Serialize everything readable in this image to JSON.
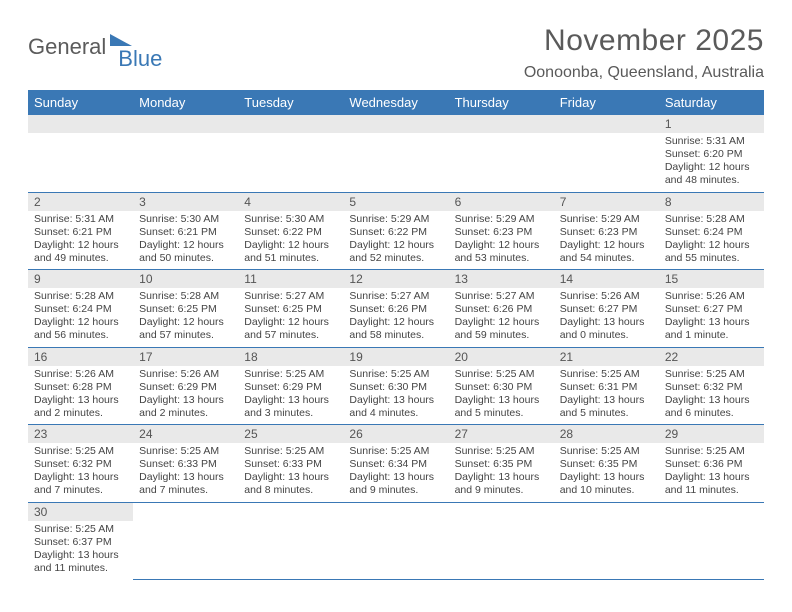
{
  "brand": {
    "part1": "General",
    "part2": "Blue"
  },
  "title": "November 2025",
  "location": "Oonoonba, Queensland, Australia",
  "colors": {
    "header_bg": "#3a78b5",
    "header_text": "#ffffff",
    "daynum_bg": "#e9e9e9",
    "rule": "#3a78b5",
    "text": "#444444",
    "title_text": "#5a5a5a"
  },
  "weekdays": [
    "Sunday",
    "Monday",
    "Tuesday",
    "Wednesday",
    "Thursday",
    "Friday",
    "Saturday"
  ],
  "layout": {
    "cols": 7,
    "rows": 6,
    "cell_font_size_pt": 10.5,
    "header_font_size_pt": 13
  },
  "days": [
    {
      "n": 1,
      "sunrise": "5:31 AM",
      "sunset": "6:20 PM",
      "daylight": "12 hours and 48 minutes."
    },
    {
      "n": 2,
      "sunrise": "5:31 AM",
      "sunset": "6:21 PM",
      "daylight": "12 hours and 49 minutes."
    },
    {
      "n": 3,
      "sunrise": "5:30 AM",
      "sunset": "6:21 PM",
      "daylight": "12 hours and 50 minutes."
    },
    {
      "n": 4,
      "sunrise": "5:30 AM",
      "sunset": "6:22 PM",
      "daylight": "12 hours and 51 minutes."
    },
    {
      "n": 5,
      "sunrise": "5:29 AM",
      "sunset": "6:22 PM",
      "daylight": "12 hours and 52 minutes."
    },
    {
      "n": 6,
      "sunrise": "5:29 AM",
      "sunset": "6:23 PM",
      "daylight": "12 hours and 53 minutes."
    },
    {
      "n": 7,
      "sunrise": "5:29 AM",
      "sunset": "6:23 PM",
      "daylight": "12 hours and 54 minutes."
    },
    {
      "n": 8,
      "sunrise": "5:28 AM",
      "sunset": "6:24 PM",
      "daylight": "12 hours and 55 minutes."
    },
    {
      "n": 9,
      "sunrise": "5:28 AM",
      "sunset": "6:24 PM",
      "daylight": "12 hours and 56 minutes."
    },
    {
      "n": 10,
      "sunrise": "5:28 AM",
      "sunset": "6:25 PM",
      "daylight": "12 hours and 57 minutes."
    },
    {
      "n": 11,
      "sunrise": "5:27 AM",
      "sunset": "6:25 PM",
      "daylight": "12 hours and 57 minutes."
    },
    {
      "n": 12,
      "sunrise": "5:27 AM",
      "sunset": "6:26 PM",
      "daylight": "12 hours and 58 minutes."
    },
    {
      "n": 13,
      "sunrise": "5:27 AM",
      "sunset": "6:26 PM",
      "daylight": "12 hours and 59 minutes."
    },
    {
      "n": 14,
      "sunrise": "5:26 AM",
      "sunset": "6:27 PM",
      "daylight": "13 hours and 0 minutes."
    },
    {
      "n": 15,
      "sunrise": "5:26 AM",
      "sunset": "6:27 PM",
      "daylight": "13 hours and 1 minute."
    },
    {
      "n": 16,
      "sunrise": "5:26 AM",
      "sunset": "6:28 PM",
      "daylight": "13 hours and 2 minutes."
    },
    {
      "n": 17,
      "sunrise": "5:26 AM",
      "sunset": "6:29 PM",
      "daylight": "13 hours and 2 minutes."
    },
    {
      "n": 18,
      "sunrise": "5:25 AM",
      "sunset": "6:29 PM",
      "daylight": "13 hours and 3 minutes."
    },
    {
      "n": 19,
      "sunrise": "5:25 AM",
      "sunset": "6:30 PM",
      "daylight": "13 hours and 4 minutes."
    },
    {
      "n": 20,
      "sunrise": "5:25 AM",
      "sunset": "6:30 PM",
      "daylight": "13 hours and 5 minutes."
    },
    {
      "n": 21,
      "sunrise": "5:25 AM",
      "sunset": "6:31 PM",
      "daylight": "13 hours and 5 minutes."
    },
    {
      "n": 22,
      "sunrise": "5:25 AM",
      "sunset": "6:32 PM",
      "daylight": "13 hours and 6 minutes."
    },
    {
      "n": 23,
      "sunrise": "5:25 AM",
      "sunset": "6:32 PM",
      "daylight": "13 hours and 7 minutes."
    },
    {
      "n": 24,
      "sunrise": "5:25 AM",
      "sunset": "6:33 PM",
      "daylight": "13 hours and 7 minutes."
    },
    {
      "n": 25,
      "sunrise": "5:25 AM",
      "sunset": "6:33 PM",
      "daylight": "13 hours and 8 minutes."
    },
    {
      "n": 26,
      "sunrise": "5:25 AM",
      "sunset": "6:34 PM",
      "daylight": "13 hours and 9 minutes."
    },
    {
      "n": 27,
      "sunrise": "5:25 AM",
      "sunset": "6:35 PM",
      "daylight": "13 hours and 9 minutes."
    },
    {
      "n": 28,
      "sunrise": "5:25 AM",
      "sunset": "6:35 PM",
      "daylight": "13 hours and 10 minutes."
    },
    {
      "n": 29,
      "sunrise": "5:25 AM",
      "sunset": "6:36 PM",
      "daylight": "13 hours and 11 minutes."
    },
    {
      "n": 30,
      "sunrise": "5:25 AM",
      "sunset": "6:37 PM",
      "daylight": "13 hours and 11 minutes."
    }
  ],
  "first_weekday_index": 6,
  "labels": {
    "sunrise": "Sunrise:",
    "sunset": "Sunset:",
    "daylight": "Daylight:"
  }
}
